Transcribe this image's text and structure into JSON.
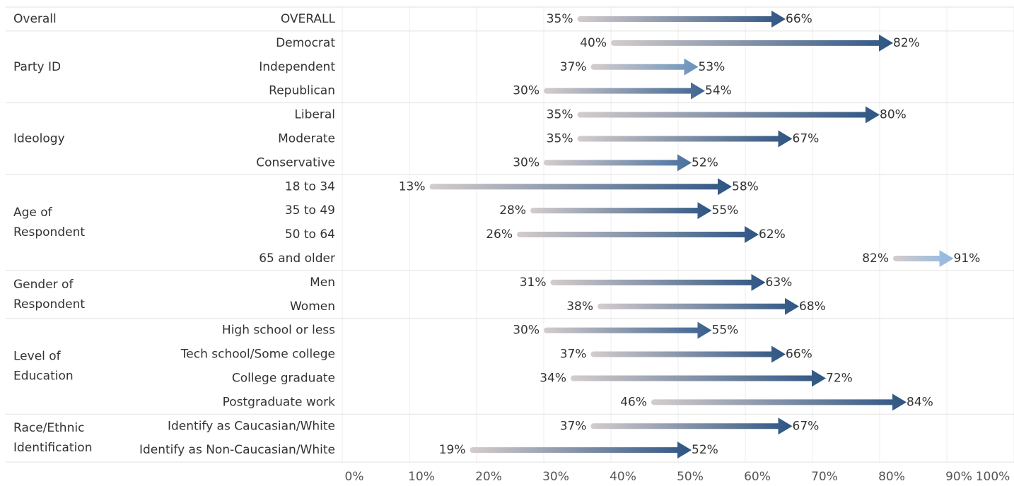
{
  "chart_data": {
    "type": "arrow-range",
    "x_axis": {
      "ticks": [
        "0%",
        "10%",
        "20%",
        "30%",
        "40%",
        "50%",
        "60%",
        "70%",
        "80%",
        "90%",
        "100%"
      ],
      "range": [
        0,
        100
      ],
      "grid": true
    },
    "colors": {
      "arrow_start": "#d4cccc",
      "arrow_end_dark": "#2e5583",
      "arrow_end_light": "#8fb8e0"
    },
    "groups": [
      {
        "category": [
          "Overall"
        ],
        "rows": [
          {
            "label": "OVERALL",
            "start": 35,
            "end": 66,
            "start_label": "35%",
            "end_label": "66%"
          }
        ]
      },
      {
        "category": [
          "Party ID"
        ],
        "rows": [
          {
            "label": "Democrat",
            "start": 40,
            "end": 82,
            "start_label": "40%",
            "end_label": "82%"
          },
          {
            "label": "Independent",
            "start": 37,
            "end": 53,
            "start_label": "37%",
            "end_label": "53%"
          },
          {
            "label": "Republican",
            "start": 30,
            "end": 54,
            "start_label": "30%",
            "end_label": "54%"
          }
        ]
      },
      {
        "category": [
          "Ideology"
        ],
        "rows": [
          {
            "label": "Liberal",
            "start": 35,
            "end": 80,
            "start_label": "35%",
            "end_label": "80%"
          },
          {
            "label": "Moderate",
            "start": 35,
            "end": 67,
            "start_label": "35%",
            "end_label": "67%"
          },
          {
            "label": "Conservative",
            "start": 30,
            "end": 52,
            "start_label": "30%",
            "end_label": "52%"
          }
        ]
      },
      {
        "category": [
          "Age of",
          "Respondent"
        ],
        "rows": [
          {
            "label": "18 to 34",
            "start": 13,
            "end": 58,
            "start_label": "13%",
            "end_label": "58%"
          },
          {
            "label": "35 to 49",
            "start": 28,
            "end": 55,
            "start_label": "28%",
            "end_label": "55%"
          },
          {
            "label": "50 to 64",
            "start": 26,
            "end": 62,
            "start_label": "26%",
            "end_label": "62%"
          },
          {
            "label": "65 and older",
            "start": 82,
            "end": 91,
            "start_label": "82%",
            "end_label": "91%"
          }
        ]
      },
      {
        "category": [
          "Gender of",
          "Respondent"
        ],
        "rows": [
          {
            "label": "Men",
            "start": 31,
            "end": 63,
            "start_label": "31%",
            "end_label": "63%"
          },
          {
            "label": "Women",
            "start": 38,
            "end": 68,
            "start_label": "38%",
            "end_label": "68%"
          }
        ]
      },
      {
        "category": [
          "Level of",
          "Education"
        ],
        "rows": [
          {
            "label": "High school or less",
            "start": 30,
            "end": 55,
            "start_label": "30%",
            "end_label": "55%"
          },
          {
            "label": "Tech school/Some college",
            "start": 37,
            "end": 66,
            "start_label": "37%",
            "end_label": "66%"
          },
          {
            "label": "College graduate",
            "start": 34,
            "end": 72,
            "start_label": "34%",
            "end_label": "72%"
          },
          {
            "label": "Postgraduate work",
            "start": 46,
            "end": 84,
            "start_label": "46%",
            "end_label": "84%"
          }
        ]
      },
      {
        "category": [
          "Race/Ethnic",
          "Identification"
        ],
        "rows": [
          {
            "label": "Identify as Caucasian/White",
            "start": 37,
            "end": 67,
            "start_label": "37%",
            "end_label": "67%"
          },
          {
            "label": "Identify as Non-Caucasian/White",
            "start": 19,
            "end": 52,
            "start_label": "19%",
            "end_label": "52%"
          }
        ]
      }
    ]
  }
}
